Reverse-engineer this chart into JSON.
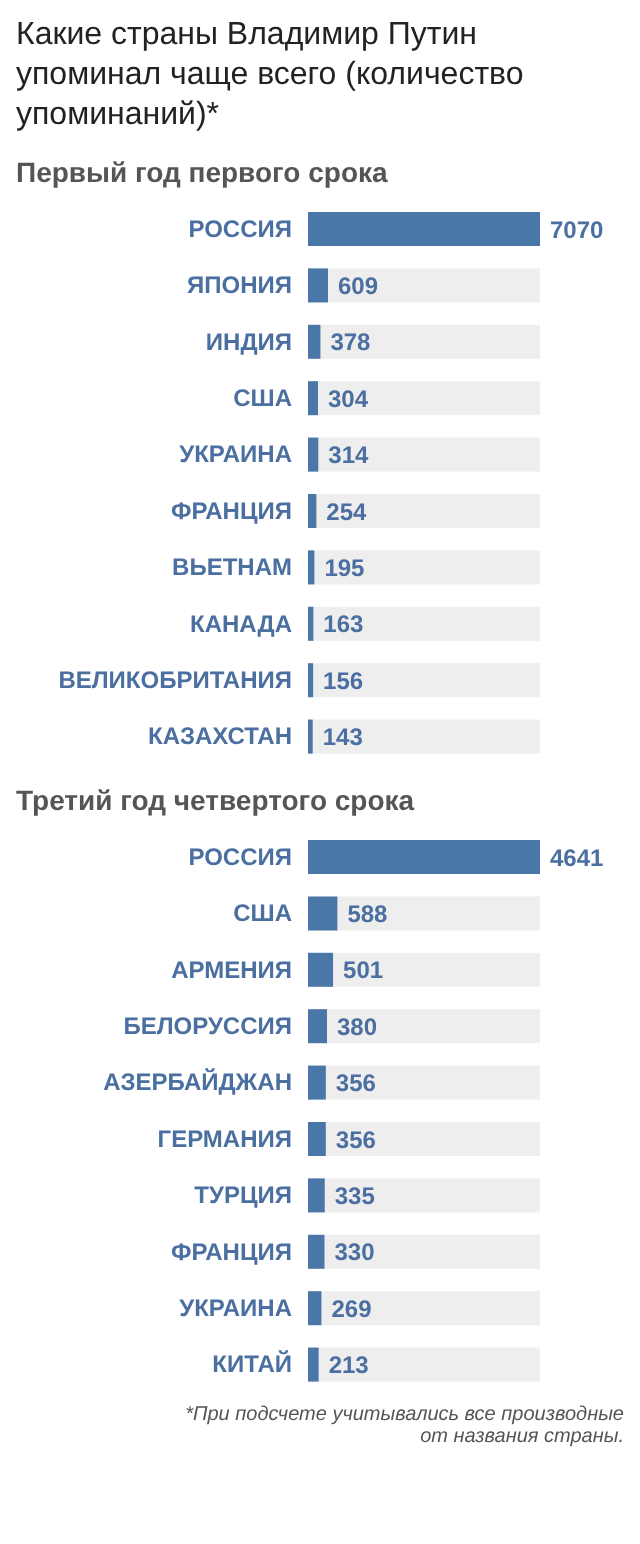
{
  "chart_data": [
    {
      "type": "bar",
      "orientation": "horizontal",
      "title": "Какие страны Владимир Путин упоминал чаще всего (количество упоминаний)*",
      "subtitle": "Первый год первого срока",
      "categories": [
        "РОССИЯ",
        "ЯПОНИЯ",
        "ИНДИЯ",
        "США",
        "УКРАИНА",
        "ФРАНЦИЯ",
        "ВЬЕТНАМ",
        "КАНАДА",
        "ВЕЛИКОБРИТАНИЯ",
        "КАЗАХСТАН"
      ],
      "values": [
        7070,
        609,
        378,
        304,
        314,
        254,
        195,
        163,
        156,
        143
      ],
      "color": "#4a76a8",
      "data_labels": true
    },
    {
      "type": "bar",
      "orientation": "horizontal",
      "subtitle": "Третий год четвертого срока",
      "categories": [
        "РОССИЯ",
        "США",
        "АРМЕНИЯ",
        "БЕЛОРУССИЯ",
        "АЗЕРБАЙДЖАН",
        "ГЕРМАНИЯ",
        "ТУРЦИЯ",
        "ФРАНЦИЯ",
        "УКРАИНА",
        "КИТАЙ"
      ],
      "values": [
        4641,
        588,
        501,
        380,
        356,
        356,
        335,
        330,
        269,
        213
      ],
      "color": "#4a76a8",
      "data_labels": true,
      "annotations": [
        "*При подсчете учитывались все производные от названия страны."
      ]
    }
  ]
}
